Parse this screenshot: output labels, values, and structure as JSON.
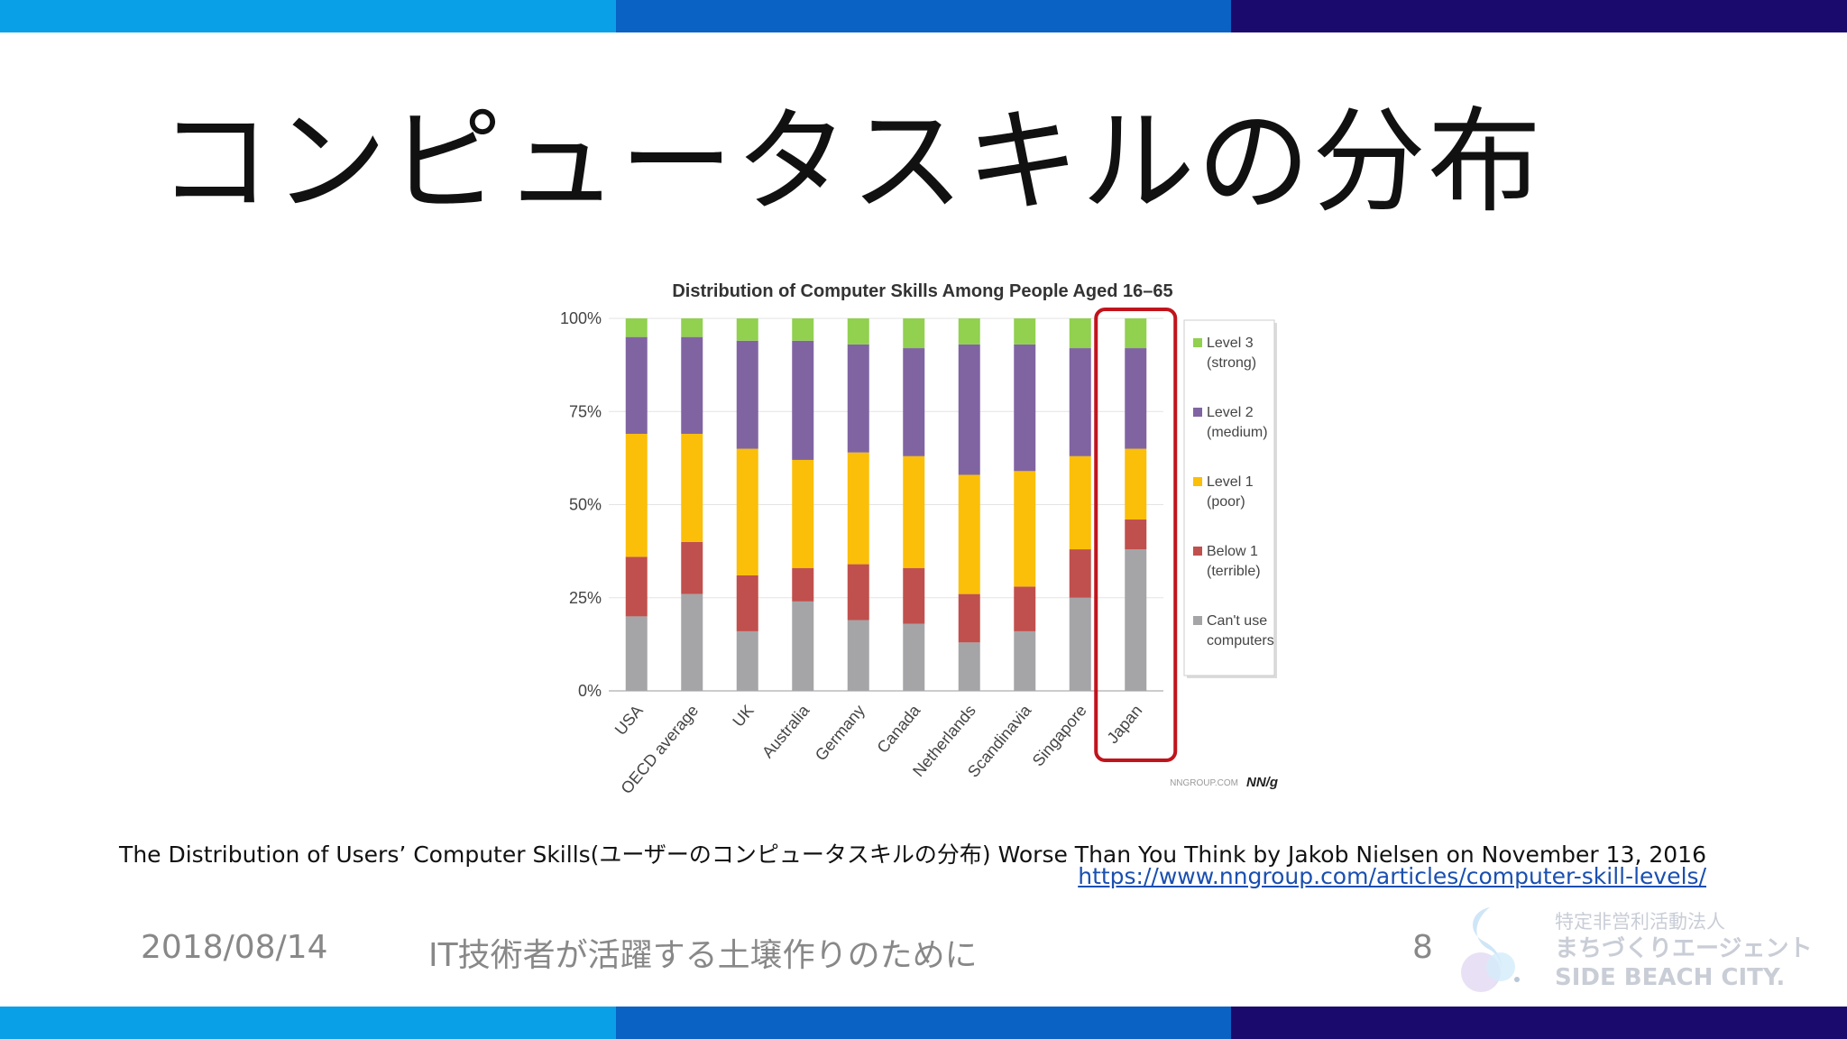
{
  "slide": {
    "title": "コンピュータスキルの分布",
    "source_text": "The Distribution of Users’ Computer Skills(ユーザーのコンピュータスキルの分布) Worse Than You Think by Jakob Nielsen on November 13, 2016",
    "source_url": "https://www.nngroup.com/articles/computer-skill-levels/"
  },
  "footer": {
    "date": "2018/08/14",
    "talk_title": "IT技術者が活躍する土壌作りのために",
    "page_number": "8",
    "org_line1": "特定非営利活動法人",
    "org_line2": "まちづくりエージェント",
    "org_line3": "SIDE BEACH CITY."
  },
  "colors": {
    "band": [
      "#0aa0e8",
      "#0a62c4",
      "#1a0a6e"
    ],
    "highlight": "#c0141c"
  },
  "chart_data": {
    "type": "bar",
    "stacked": true,
    "title": "Distribution of Computer Skills Among People Aged 16–65",
    "categories": [
      "USA",
      "OECD average",
      "UK",
      "Australia",
      "Germany",
      "Canada",
      "Netherlands",
      "Scandinavia",
      "Singapore",
      "Japan"
    ],
    "series": [
      {
        "name": "Can't use computers",
        "label_lines": [
          "Can't use",
          "computers"
        ],
        "color": "#a5a5a8",
        "values": [
          20,
          26,
          16,
          24,
          19,
          18,
          13,
          16,
          25,
          38
        ]
      },
      {
        "name": "Below 1 (terrible)",
        "label_lines": [
          "Below 1",
          "(terrible)"
        ],
        "color": "#c0504d",
        "values": [
          16,
          14,
          15,
          9,
          15,
          15,
          13,
          12,
          13,
          8
        ]
      },
      {
        "name": "Level 1 (poor)",
        "label_lines": [
          "Level 1",
          "(poor)"
        ],
        "color": "#fbbf09",
        "values": [
          33,
          29,
          34,
          29,
          30,
          30,
          32,
          31,
          25,
          19
        ]
      },
      {
        "name": "Level 2 (medium)",
        "label_lines": [
          "Level 2",
          "(medium)"
        ],
        "color": "#8064a2",
        "values": [
          26,
          26,
          29,
          32,
          29,
          29,
          35,
          34,
          29,
          27
        ]
      },
      {
        "name": "Level 3 (strong)",
        "label_lines": [
          "Level 3",
          "(strong)"
        ],
        "color": "#92d050",
        "values": [
          5,
          5,
          6,
          6,
          7,
          8,
          7,
          7,
          8,
          8
        ]
      }
    ],
    "yticks": [
      "0%",
      "25%",
      "50%",
      "75%",
      "100%"
    ],
    "ylim": [
      0,
      100
    ],
    "legend_position": "right",
    "highlighted_category": "Japan",
    "watermark": "NNGROUP.COM",
    "logo": "NN/g"
  }
}
